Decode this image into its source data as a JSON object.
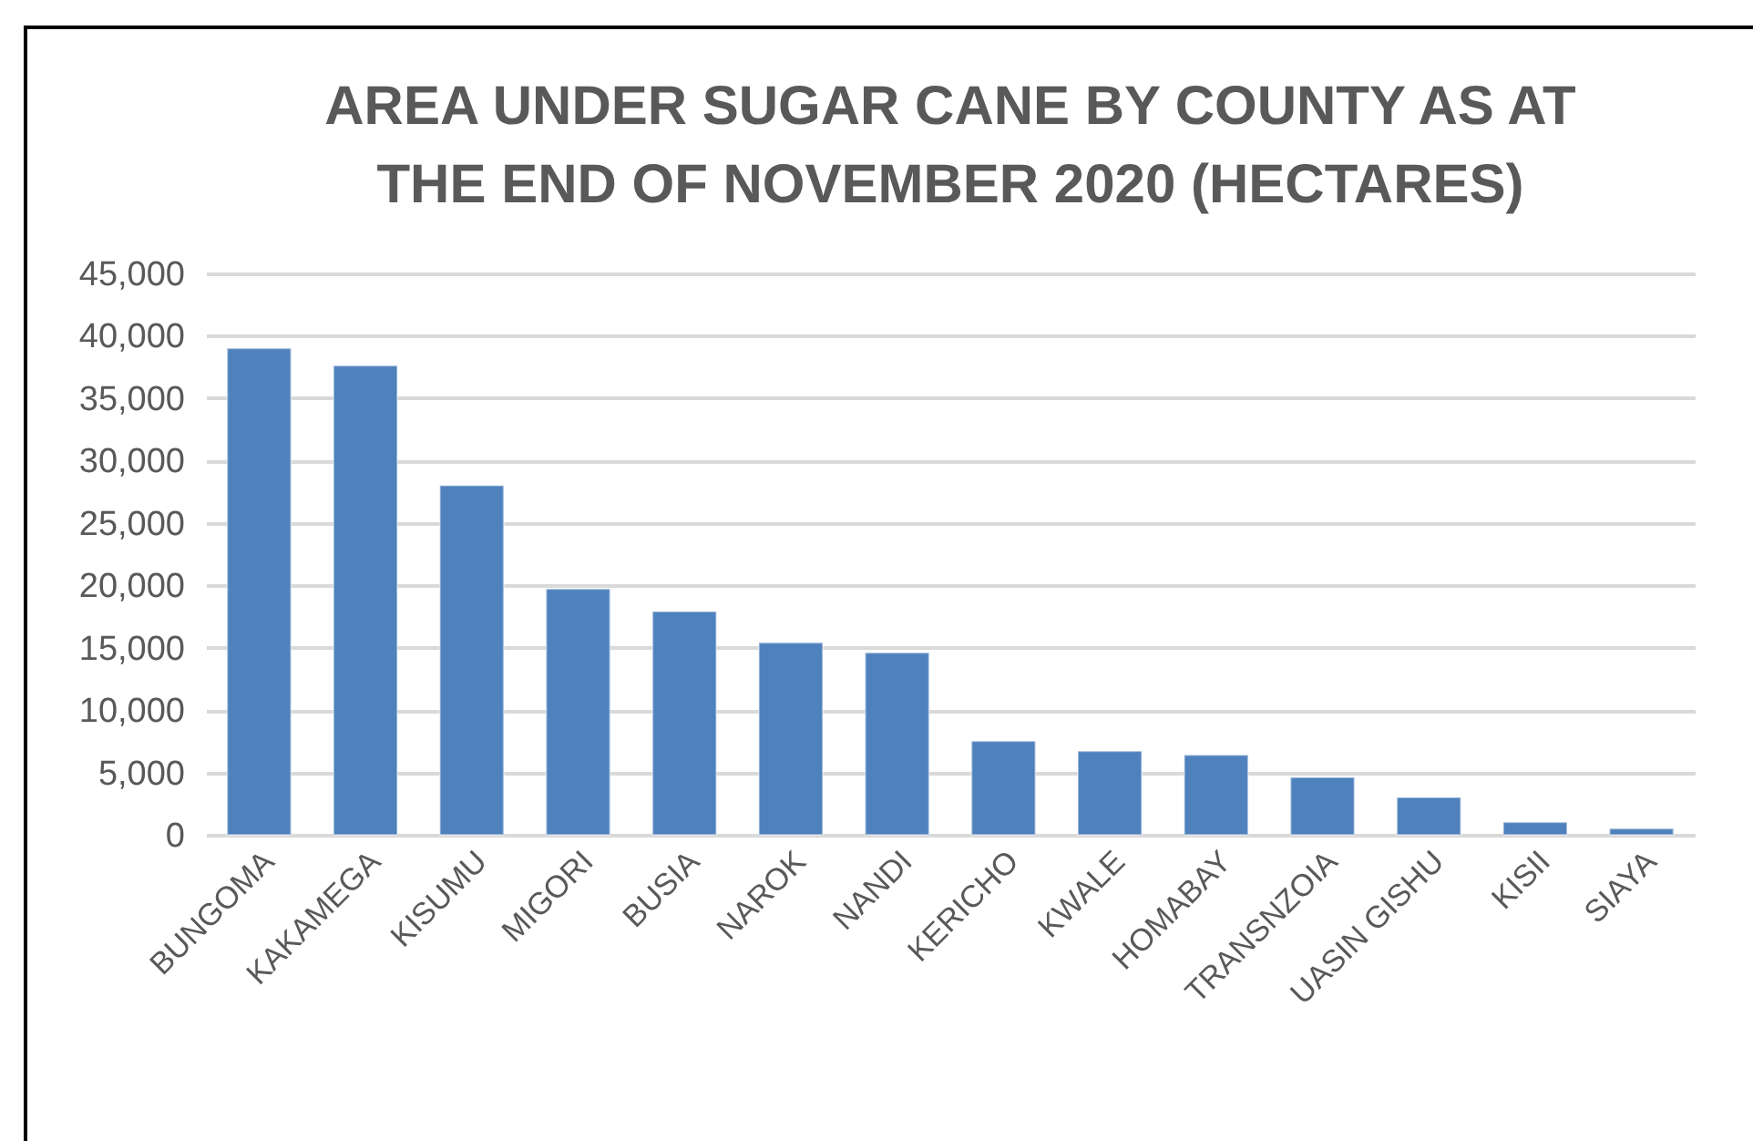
{
  "chart_data": {
    "type": "bar",
    "title": "AREA UNDER SUGAR CANE BY COUNTY AS AT\nTHE END OF NOVEMBER 2020 (HECTARES)",
    "categories": [
      "BUNGOMA",
      "KAKAMEGA",
      "KISUMU",
      "MIGORI",
      "BUSIA",
      "NAROK",
      "NANDI",
      "KERICHO",
      "KWALE",
      "HOMABAY",
      "TRANSNZOIA",
      "UASIN GISHU",
      "KISII",
      "SIAYA"
    ],
    "values": [
      39000,
      37600,
      28000,
      19700,
      17900,
      15400,
      14600,
      7500,
      6700,
      6400,
      4600,
      3000,
      1000,
      500
    ],
    "color": "#4f81bd",
    "ylim": [
      0,
      45000
    ],
    "yticks": [
      0,
      {
        "value": 5000,
        "label": "5,000"
      },
      {
        "value": 10000,
        "label": "10,000"
      },
      {
        "value": 15000,
        "label": "15,000"
      },
      {
        "value": 20000,
        "label": "20,000"
      },
      {
        "value": 25000,
        "label": "25,000"
      },
      {
        "value": 30000,
        "label": "30,000"
      },
      {
        "value": 35000,
        "label": "35,000"
      },
      {
        "value": 40000,
        "label": "40,000"
      },
      {
        "value": 45000,
        "label": "45,000"
      }
    ],
    "grid": "y"
  }
}
